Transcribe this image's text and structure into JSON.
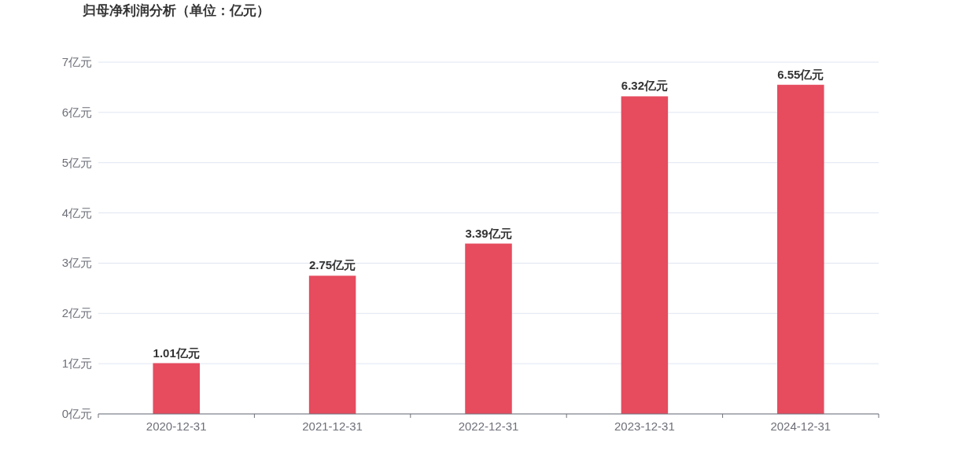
{
  "chart_data": {
    "type": "bar",
    "title": "归母净利润分析（单位：亿元）",
    "categories": [
      "2020-12-31",
      "2021-12-31",
      "2022-12-31",
      "2023-12-31",
      "2024-12-31"
    ],
    "values": [
      1.01,
      2.75,
      3.39,
      6.32,
      6.55
    ],
    "value_labels": [
      "1.01亿元",
      "2.75亿元",
      "3.39亿元",
      "6.32亿元",
      "6.55亿元"
    ],
    "color": "#e64b5e",
    "ylim": [
      0,
      7
    ],
    "yticks": [
      {
        "value": 0,
        "label": "0亿元"
      },
      {
        "value": 1,
        "label": "1亿元"
      },
      {
        "value": 2,
        "label": "2亿元"
      },
      {
        "value": 3,
        "label": "3亿元"
      },
      {
        "value": 4,
        "label": "4亿元"
      },
      {
        "value": 5,
        "label": "5亿元"
      },
      {
        "value": 6,
        "label": "6亿元"
      },
      {
        "value": 7,
        "label": "7亿元"
      }
    ],
    "grid": "y"
  }
}
